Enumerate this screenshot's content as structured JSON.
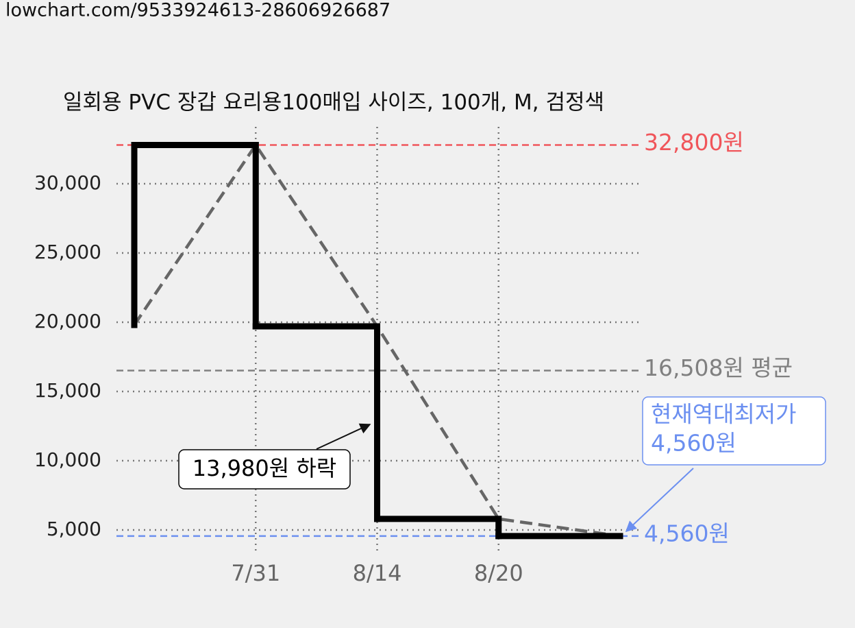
{
  "url": "lowchart.com/9533924613-28606926687",
  "chart_data": {
    "type": "step-line",
    "title": "일회용 PVC 장갑 요리용100매입 사이즈, 100개, M, 검정색",
    "categories": [
      null,
      "7/31",
      "8/14",
      "8/20",
      null
    ],
    "values": [
      19800,
      32800,
      19700,
      5800,
      4560
    ],
    "color": "#000000",
    "trend_color": "#666666",
    "ylim": [
      4000,
      34500
    ],
    "yticks": [
      {
        "value": 5000,
        "label": "5,000"
      },
      {
        "value": 10000,
        "label": "10,000"
      },
      {
        "value": 15000,
        "label": "15,000"
      },
      {
        "value": 20000,
        "label": "20,000"
      },
      {
        "value": 25000,
        "label": "25,000"
      },
      {
        "value": 30000,
        "label": "30,000"
      }
    ],
    "grid": true,
    "reference_lines": [
      {
        "value": 32800,
        "label": "32,800원",
        "color": "#f0555a"
      },
      {
        "value": 16508,
        "label": "16,508원 평균",
        "color": "#808080"
      },
      {
        "value": 4560,
        "label": "4,560원",
        "color": "#6b8ff0"
      }
    ],
    "annotations": [
      {
        "lines": [
          "13,980원 하락"
        ],
        "color": "#000000"
      },
      {
        "lines": [
          "현재역대최저가",
          "4,560원"
        ],
        "color": "#6b8ff0"
      }
    ]
  }
}
